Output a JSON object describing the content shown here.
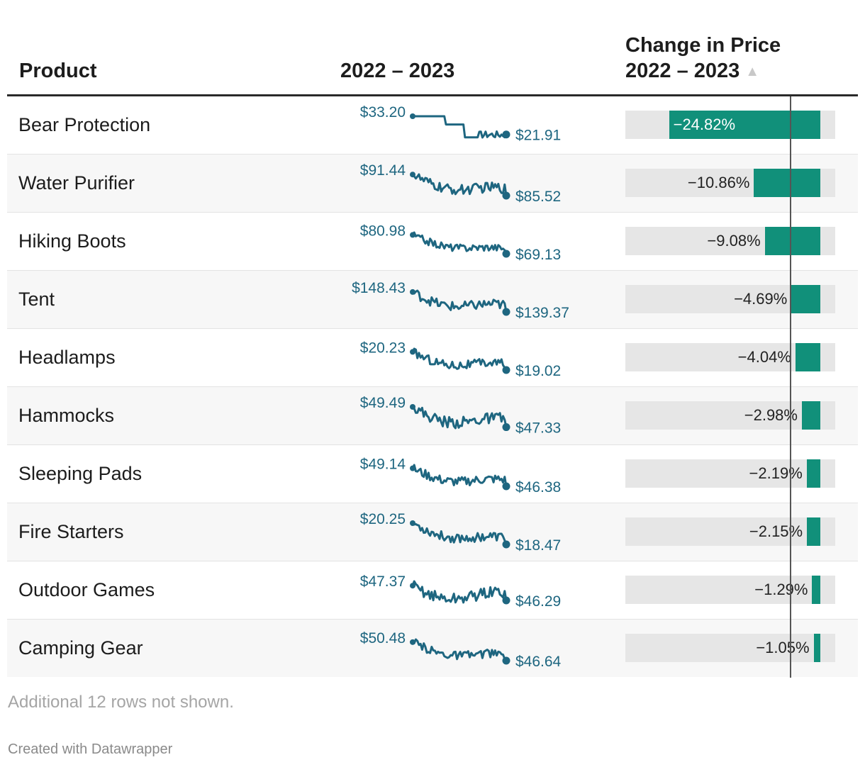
{
  "header": {
    "product": "Product",
    "trend": "2022 – 2023",
    "change_line1": "Change in Price",
    "change_line2": "2022 – 2023",
    "sort_icon": "sort-ascending-triangle"
  },
  "colors": {
    "bar": "#11907a",
    "bar_bg": "#e6e6e6",
    "spark": "#1e6680"
  },
  "footer": {
    "note": "Additional 12 rows not shown.",
    "credit": "Created with Datawrapper"
  },
  "chart_data": {
    "type": "table",
    "columns": [
      "Product",
      "2022 – 2023",
      "Change in Price 2022 – 2023"
    ],
    "change_axis": {
      "min": -32,
      "max": 2.5,
      "unit": "%"
    },
    "rows": [
      {
        "product": "Bear Protection",
        "start_label": "$33.20",
        "end_label": "$21.91",
        "start": 33.2,
        "end": 21.91,
        "change": -24.82,
        "change_label": "−24.82%"
      },
      {
        "product": "Water Purifier",
        "start_label": "$91.44",
        "end_label": "$85.52",
        "start": 91.44,
        "end": 85.52,
        "change": -10.86,
        "change_label": "−10.86%"
      },
      {
        "product": "Hiking Boots",
        "start_label": "$80.98",
        "end_label": "$69.13",
        "start": 80.98,
        "end": 69.13,
        "change": -9.08,
        "change_label": "−9.08%"
      },
      {
        "product": "Tent",
        "start_label": "$148.43",
        "end_label": "$139.37",
        "start": 148.43,
        "end": 139.37,
        "change": -4.69,
        "change_label": "−4.69%"
      },
      {
        "product": "Headlamps",
        "start_label": "$20.23",
        "end_label": "$19.02",
        "start": 20.23,
        "end": 19.02,
        "change": -4.04,
        "change_label": "−4.04%"
      },
      {
        "product": "Hammocks",
        "start_label": "$49.49",
        "end_label": "$47.33",
        "start": 49.49,
        "end": 47.33,
        "change": -2.98,
        "change_label": "−2.98%"
      },
      {
        "product": "Sleeping Pads",
        "start_label": "$49.14",
        "end_label": "$46.38",
        "start": 49.14,
        "end": 46.38,
        "change": -2.19,
        "change_label": "−2.19%"
      },
      {
        "product": "Fire Starters",
        "start_label": "$20.25",
        "end_label": "$18.47",
        "start": 20.25,
        "end": 18.47,
        "change": -2.15,
        "change_label": "−2.15%"
      },
      {
        "product": "Outdoor Games",
        "start_label": "$47.37",
        "end_label": "$46.29",
        "start": 47.37,
        "end": 46.29,
        "change": -1.29,
        "change_label": "−1.29%"
      },
      {
        "product": "Camping Gear",
        "start_label": "$50.48",
        "end_label": "$46.64",
        "start": 50.48,
        "end": 46.64,
        "change": -1.05,
        "change_label": "−1.05%"
      }
    ]
  }
}
